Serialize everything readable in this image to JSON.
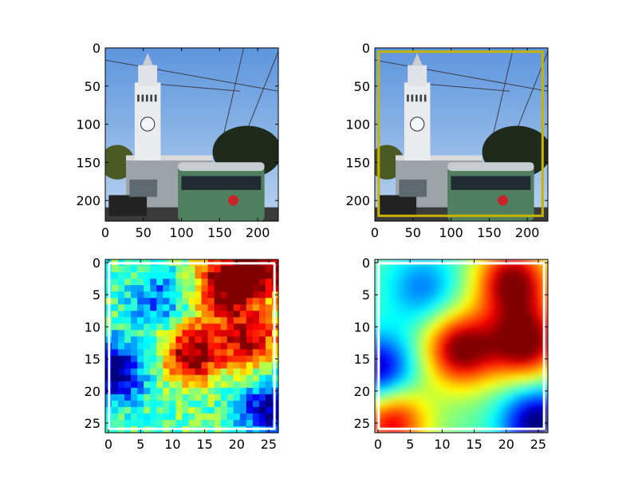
{
  "chart_data": [
    {
      "type": "image",
      "image_subject": "photo-ferry-building-clock-tower-and-green-streetcar",
      "xlim": [
        0,
        227
      ],
      "ylim": [
        227,
        0
      ],
      "xticks": [
        "0",
        "50",
        "100",
        "150",
        "200"
      ],
      "yticks": [
        "0",
        "50",
        "100",
        "150",
        "200"
      ]
    },
    {
      "type": "image",
      "image_subject": "photo-ferry-building-clock-tower-and-green-streetcar",
      "bounding_box": {
        "color": "#c8b400",
        "x0": 5,
        "y0": 5,
        "x1": 220,
        "y1": 220
      },
      "xlim": [
        0,
        227
      ],
      "ylim": [
        227,
        0
      ],
      "xticks": [
        "0",
        "50",
        "100",
        "150",
        "200"
      ],
      "yticks": [
        "0",
        "50",
        "100",
        "150",
        "200"
      ]
    },
    {
      "type": "heatmap",
      "colormap": "jet",
      "interpolation": "noisy",
      "grid_size": 27,
      "hotspots": [
        {
          "x": 18,
          "y": 3.5,
          "strength": 1.0
        },
        {
          "x": 13,
          "y": 14,
          "strength": 1.0
        },
        {
          "x": 22,
          "y": 12,
          "strength": 0.9
        },
        {
          "x": 24,
          "y": 1,
          "strength": 0.95
        }
      ],
      "coldspots": [
        {
          "x": 1,
          "y": 17,
          "strength": 1.0
        },
        {
          "x": 25,
          "y": 23,
          "strength": 0.9
        },
        {
          "x": 8,
          "y": 6,
          "strength": 0.5
        }
      ],
      "border_color": "#ffffff",
      "xlim": [
        -0.5,
        26.5
      ],
      "ylim": [
        26.5,
        -0.5
      ],
      "xticks": [
        "0",
        "5",
        "10",
        "15",
        "20",
        "25"
      ],
      "yticks": [
        "0",
        "5",
        "10",
        "15",
        "20",
        "25"
      ]
    },
    {
      "type": "heatmap",
      "colormap": "jet",
      "interpolation": "smooth",
      "grid_size": 27,
      "hotspots": [
        {
          "x": 21,
          "y": 3,
          "strength": 1.0
        },
        {
          "x": 13,
          "y": 13.5,
          "strength": 1.0
        },
        {
          "x": 23,
          "y": 12.5,
          "strength": 1.05
        },
        {
          "x": 2,
          "y": 24.5,
          "strength": 0.85
        }
      ],
      "coldspots": [
        {
          "x": 25,
          "y": 25,
          "strength": 1.0
        },
        {
          "x": 0,
          "y": 17,
          "strength": 0.9
        },
        {
          "x": 7,
          "y": 4,
          "strength": 0.45
        }
      ],
      "border_color": "#ffffff",
      "xlim": [
        -0.5,
        26.5
      ],
      "ylim": [
        26.5,
        -0.5
      ],
      "xticks": [
        "0",
        "5",
        "10",
        "15",
        "20",
        "25"
      ],
      "yticks": [
        "0",
        "5",
        "10",
        "15",
        "20",
        "25"
      ]
    }
  ]
}
